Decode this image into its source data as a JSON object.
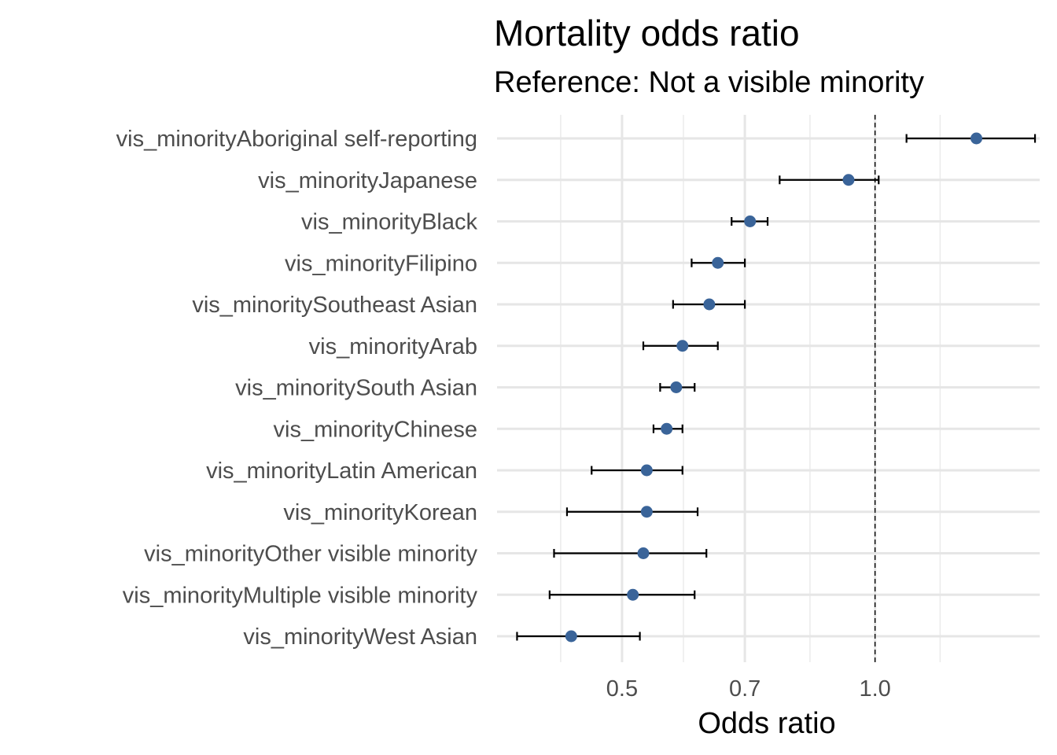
{
  "chart_data": {
    "type": "scatter",
    "title": "Mortality odds ratio",
    "subtitle": "Reference: Not a visible minority",
    "xlabel": "Odds ratio",
    "ylabel": "",
    "x_scale": "log",
    "xlim": [
      0.355,
      1.57
    ],
    "x_ticks": [
      {
        "value": 0.5,
        "label": "0.5"
      },
      {
        "value": 0.7,
        "label": "0.7"
      },
      {
        "value": 1.0,
        "label": "1.0"
      }
    ],
    "reference_line": {
      "x": 1.0,
      "style": "dashed"
    },
    "grid": true,
    "point_color": "#3a6499",
    "errorbar_color": "#000000",
    "categories": [
      "vis_minorityAboriginal self-reporting",
      "vis_minorityJapanese",
      "vis_minorityBlack",
      "vis_minorityFilipino",
      "vis_minoritySoutheast Asian",
      "vis_minorityArab",
      "vis_minoritySouth Asian",
      "vis_minorityChinese",
      "vis_minorityLatin American",
      "vis_minorityKorean",
      "vis_minorityOther visible minority",
      "vis_minorityMultiple visible minority",
      "vis_minorityWest Asian"
    ],
    "estimates": [
      1.32,
      0.93,
      0.71,
      0.65,
      0.635,
      0.59,
      0.58,
      0.565,
      0.535,
      0.535,
      0.53,
      0.515,
      0.435
    ],
    "ci_low": [
      1.09,
      0.77,
      0.675,
      0.605,
      0.575,
      0.53,
      0.555,
      0.545,
      0.46,
      0.43,
      0.415,
      0.41,
      0.375
    ],
    "ci_high": [
      1.55,
      1.01,
      0.745,
      0.7,
      0.7,
      0.65,
      0.61,
      0.59,
      0.59,
      0.615,
      0.63,
      0.61,
      0.525
    ]
  }
}
